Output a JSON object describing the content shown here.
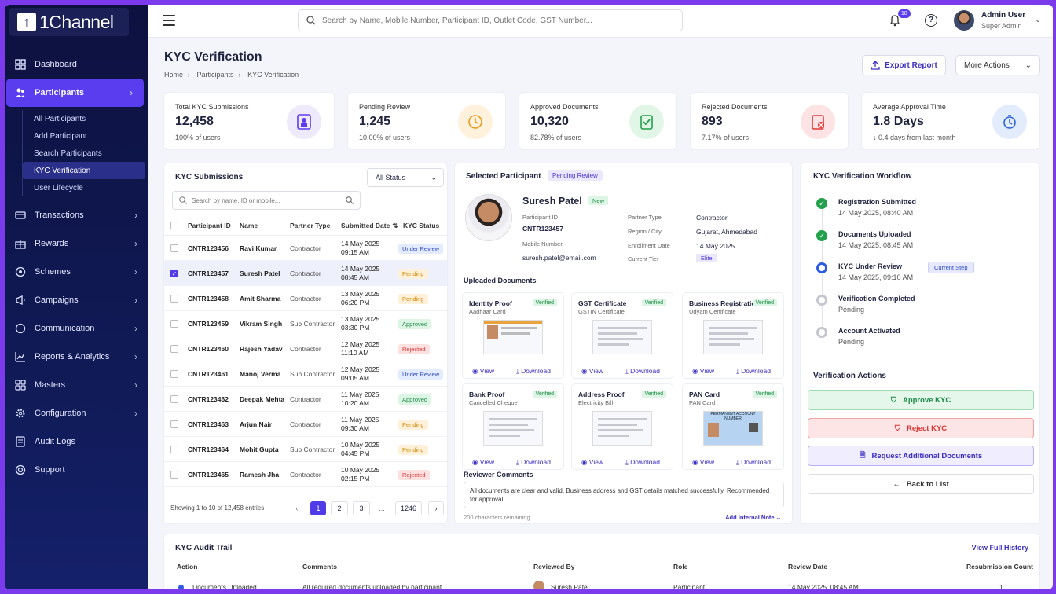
{
  "brand": {
    "name": "1Channel"
  },
  "sidebar": {
    "items": [
      {
        "label": "Dashboard",
        "icon": "dashboard-icon"
      },
      {
        "label": "Participants",
        "icon": "participants-icon"
      },
      {
        "label": "Transactions",
        "icon": "transactions-icon"
      },
      {
        "label": "Rewards",
        "icon": "gift-icon"
      },
      {
        "label": "Schemes",
        "icon": "schemes-icon"
      },
      {
        "label": "Campaigns",
        "icon": "megaphone-icon"
      },
      {
        "label": "Communication",
        "icon": "chat-icon"
      },
      {
        "label": "Reports & Analytics",
        "icon": "chart-icon"
      },
      {
        "label": "Masters",
        "icon": "grid-icon"
      },
      {
        "label": "Configuration",
        "icon": "gear-icon"
      },
      {
        "label": "Audit Logs",
        "icon": "log-icon"
      },
      {
        "label": "Support",
        "icon": "support-icon"
      }
    ],
    "sub": [
      "All Participants",
      "Add Participant",
      "Search Participants",
      "KYC Verification",
      "User Lifecycle"
    ]
  },
  "header": {
    "search_placeholder": "Search by Name, Mobile Number, Participant ID, Outlet Code, GST Number...",
    "notif_count": "18",
    "user_name": "Admin User",
    "user_role": "Super Admin"
  },
  "page": {
    "title": "KYC Verification",
    "crumbs": [
      "Home",
      "Participants",
      "KYC Verification"
    ],
    "export": "Export Report",
    "more": "More Actions"
  },
  "stats": [
    {
      "label": "Total KYC Submissions",
      "value": "12,458",
      "sub": "100% of users"
    },
    {
      "label": "Pending Review",
      "value": "1,245",
      "sub": "10.00% of users"
    },
    {
      "label": "Approved Documents",
      "value": "10,320",
      "sub": "82.78% of users"
    },
    {
      "label": "Rejected Documents",
      "value": "893",
      "sub": "7.17% of users"
    },
    {
      "label": "Average Approval Time",
      "value": "1.8 Days",
      "sub": "↓ 0.4 days from last month"
    }
  ],
  "submissions": {
    "title": "KYC Submissions",
    "filter": "All Status",
    "search_placeholder": "Search by name, ID or mobile...",
    "headers": [
      "Participant ID",
      "Name",
      "Partner Type",
      "Submitted Date",
      "KYC Status"
    ],
    "rows": [
      {
        "id": "CNTR123456",
        "name": "Ravi Kumar",
        "type": "Contractor",
        "date": "14 May 2025",
        "time": "09:15 AM",
        "status": "Under Review"
      },
      {
        "id": "CNTR123457",
        "name": "Suresh Patel",
        "type": "Contractor",
        "date": "14 May 2025",
        "time": "08:45 AM",
        "status": "Pending"
      },
      {
        "id": "CNTR123458",
        "name": "Amit Sharma",
        "type": "Contractor",
        "date": "13 May 2025",
        "time": "06:20 PM",
        "status": "Pending"
      },
      {
        "id": "CNTR123459",
        "name": "Vikram Singh",
        "type": "Sub Contractor",
        "date": "13 May 2025",
        "time": "03:30 PM",
        "status": "Approved"
      },
      {
        "id": "CNTR123460",
        "name": "Rajesh Yadav",
        "type": "Contractor",
        "date": "12 May 2025",
        "time": "11:10 AM",
        "status": "Rejected"
      },
      {
        "id": "CNTR123461",
        "name": "Manoj Verma",
        "type": "Sub Contractor",
        "date": "12 May 2025",
        "time": "09:05 AM",
        "status": "Under Review"
      },
      {
        "id": "CNTR123462",
        "name": "Deepak Mehta",
        "type": "Contractor",
        "date": "11 May 2025",
        "time": "10:20 AM",
        "status": "Approved"
      },
      {
        "id": "CNTR123463",
        "name": "Arjun Nair",
        "type": "Contractor",
        "date": "11 May 2025",
        "time": "09:30 AM",
        "status": "Pending"
      },
      {
        "id": "CNTR123464",
        "name": "Mohit Gupta",
        "type": "Sub Contractor",
        "date": "10 May 2025",
        "time": "04:45 PM",
        "status": "Pending"
      },
      {
        "id": "CNTR123465",
        "name": "Ramesh Jha",
        "type": "Contractor",
        "date": "10 May 2025",
        "time": "02:15 PM",
        "status": "Rejected"
      }
    ],
    "showing": "Showing 1 to 10 of 12,458 entries",
    "pages": [
      "1",
      "2",
      "3",
      "...",
      "1246"
    ]
  },
  "selected": {
    "title": "Selected Participant",
    "status": "Pending Review",
    "name": "Suresh Patel",
    "tag": "New",
    "id_label": "Participant ID",
    "id": "CNTR123457",
    "mobile_label": "Mobile Number",
    "email": "suresh.patel@email.com",
    "ptype_label": "Partner Type",
    "ptype": "Contractor",
    "region_label": "Region / City",
    "region": "Gujarat, Ahmedabad",
    "enroll_label": "Enrollment Date",
    "enroll": "14 May 2025",
    "tier_label": "Current Tier",
    "tier": "Elite",
    "docs_title": "Uploaded Documents",
    "docs": [
      {
        "title": "Identity Proof",
        "sub": "Aadhaar Card",
        "status": "Verified"
      },
      {
        "title": "GST Certificate",
        "sub": "GSTIN Certificate",
        "status": "Verified"
      },
      {
        "title": "Business Registration",
        "sub": "Udyam Certificate",
        "status": "Verified"
      },
      {
        "title": "Bank Proof",
        "sub": "Cancelled Cheque",
        "status": "Verified"
      },
      {
        "title": "Address Proof",
        "sub": "Electricity Bill",
        "status": "Verified"
      },
      {
        "title": "PAN Card",
        "sub": "PAN Card",
        "status": "Verified"
      }
    ],
    "view": "View",
    "download": "Download",
    "pan_text": "PERMANENT ACCOUNT NUMBER",
    "comments_title": "Reviewer Comments",
    "comment": "All documents are clear and valid. Business address and GST details matched successfully. Recommended for approval.",
    "remaining": "200 characters remaining",
    "add_note": "Add Internal Note"
  },
  "workflow": {
    "title": "KYC Verification Workflow",
    "steps": [
      {
        "title": "Registration Submitted",
        "sub": "14 May 2025, 08:40 AM"
      },
      {
        "title": "Documents Uploaded",
        "sub": "14 May 2025, 08:45 AM"
      },
      {
        "title": "KYC Under Review",
        "sub": "14 May 2025, 09:10 AM",
        "badge": "Current Step"
      },
      {
        "title": "Verification Completed",
        "sub": "Pending"
      },
      {
        "title": "Account Activated",
        "sub": "Pending"
      }
    ],
    "actions_title": "Verification Actions",
    "approve": "Approve KYC",
    "reject": "Reject KYC",
    "request": "Request Additional Documents",
    "back": "Back to List"
  },
  "audit": {
    "title": "KYC Audit Trail",
    "history": "View Full History",
    "headers": [
      "Action",
      "Comments",
      "Reviewed By",
      "Role",
      "Review Date",
      "Resubmission Count"
    ],
    "row": {
      "action": "Documents Uploaded",
      "comment": "All required documents uploaded by participant",
      "by": "Suresh Patel",
      "role": "Participant",
      "date": "14 May 2025, 08:45 AM",
      "count": "1"
    }
  },
  "colors": {
    "accent": "#5b3df0",
    "sidebar": "#0d1140",
    "frame": "#7c3aed"
  }
}
